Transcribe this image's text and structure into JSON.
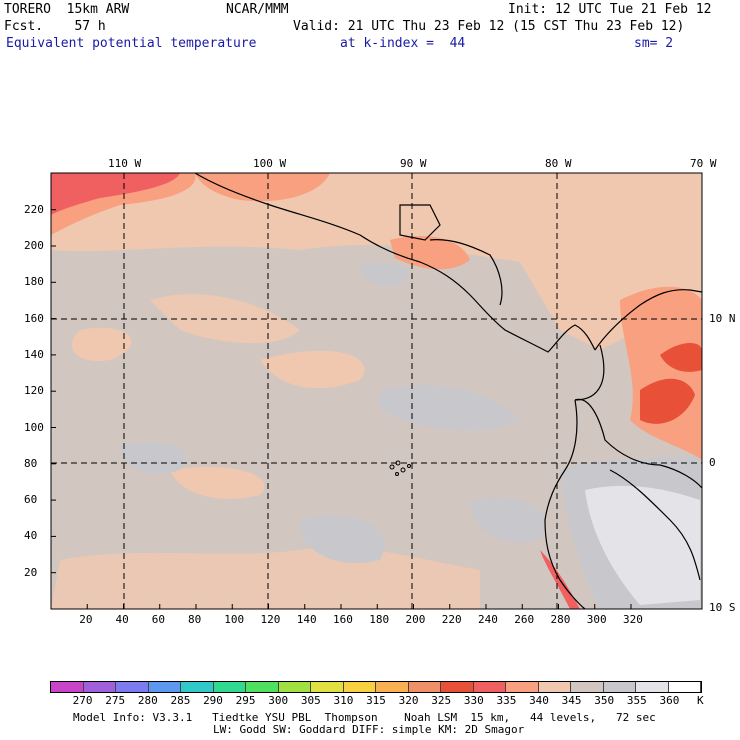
{
  "header": {
    "line1_left": "TORERO  15km ARW",
    "line1_center": "NCAR/MMM",
    "line1_right": "Init: 12 UTC Tue 21 Feb 12",
    "line2_left": "Fcst.    57 h",
    "line2_right": "Valid: 21 UTC Thu 23 Feb 12 (15 CST Thu 23 Feb 12)",
    "line3_field": "Equivalent potential temperature",
    "line3_level": "at k-index =  44",
    "line3_sm": "sm= 2"
  },
  "map": {
    "top_lon_labels": [
      "110 W",
      "100 W",
      "90 W",
      "80 W",
      "70 W"
    ],
    "right_lat_labels": [
      "10 N",
      "0",
      "10 S"
    ],
    "y_axis_labels": [
      "220",
      "200",
      "180",
      "160",
      "140",
      "120",
      "100",
      "80",
      "60",
      "40",
      "20"
    ],
    "x_axis_labels": [
      "20",
      "40",
      "60",
      "80",
      "100",
      "120",
      "140",
      "160",
      "180",
      "200",
      "220",
      "240",
      "260",
      "280",
      "300",
      "320"
    ]
  },
  "colorbar": {
    "labels": [
      "270",
      "275",
      "280",
      "285",
      "290",
      "295",
      "300",
      "305",
      "310",
      "315",
      "320",
      "325",
      "330",
      "335",
      "340",
      "345",
      "350",
      "355",
      "360"
    ],
    "unit": "K",
    "colors": [
      "#c844c8",
      "#a060dc",
      "#7c7cf0",
      "#5c98f0",
      "#30c8c8",
      "#30d890",
      "#50e060",
      "#a0e040",
      "#e0e040",
      "#f8d040",
      "#f8b050",
      "#f09068",
      "#e85038",
      "#f06060",
      "#f8a080",
      "#f0c8b0",
      "#d2c6c0",
      "#c8c8cc",
      "#e4e4e8",
      "#ffffff"
    ]
  },
  "footer": {
    "line1": "Model Info: V3.3.1   Tiedtke YSU PBL  Thompson    Noah LSM  15 km,   44 levels,   72 sec",
    "line2": "LW: Godd SW: Goddard DIFF: simple KM: 2D Smagor"
  }
}
